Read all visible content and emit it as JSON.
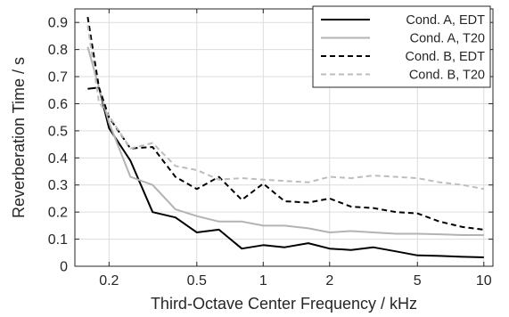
{
  "chart_data": {
    "type": "line",
    "xscale": "log",
    "xlabel": "Third-Octave Center Frequency / kHz",
    "ylabel": "Reverberation Time / s",
    "xlim": [
      0.14,
      11.0
    ],
    "ylim": [
      0,
      0.95
    ],
    "grid": true,
    "legend_position": "top-right",
    "xticks": [
      0.2,
      0.5,
      1,
      2,
      5,
      10
    ],
    "xtick_labels": [
      "0.2",
      "0.5",
      "1",
      "2",
      "5",
      "10"
    ],
    "yticks": [
      0,
      0.1,
      0.2,
      0.3,
      0.4,
      0.5,
      0.6,
      0.7,
      0.8,
      0.9
    ],
    "ytick_labels": [
      "0",
      "0.1",
      "0.2",
      "0.3",
      "0.4",
      "0.5",
      "0.6",
      "0.7",
      "0.8",
      "0.9"
    ],
    "series": [
      {
        "name": "Cond. A, EDT",
        "color": "#000000",
        "dash": "solid",
        "x": [
          0.16,
          0.18,
          0.2,
          0.25,
          0.315,
          0.4,
          0.5,
          0.63,
          0.8,
          1.0,
          1.25,
          1.6,
          2.0,
          2.5,
          3.15,
          4.0,
          5.0,
          6.3,
          8.0,
          10.0
        ],
        "y": [
          0.655,
          0.66,
          0.51,
          0.39,
          0.2,
          0.18,
          0.125,
          0.135,
          0.065,
          0.078,
          0.07,
          0.085,
          0.065,
          0.06,
          0.07,
          0.055,
          0.04,
          0.038,
          0.035,
          0.033
        ]
      },
      {
        "name": "Cond. A, T20",
        "color": "#b3b3b3",
        "dash": "solid",
        "x": [
          0.16,
          0.18,
          0.2,
          0.25,
          0.315,
          0.4,
          0.5,
          0.63,
          0.8,
          1.0,
          1.25,
          1.6,
          2.0,
          2.5,
          3.15,
          4.0,
          5.0,
          6.3,
          8.0,
          10.0
        ],
        "y": [
          0.81,
          0.66,
          0.53,
          0.33,
          0.3,
          0.21,
          0.185,
          0.165,
          0.165,
          0.15,
          0.15,
          0.14,
          0.125,
          0.13,
          0.125,
          0.12,
          0.12,
          0.118,
          0.115,
          0.115
        ]
      },
      {
        "name": "Cond. B, EDT",
        "color": "#000000",
        "dash": "dashed",
        "x": [
          0.16,
          0.18,
          0.2,
          0.25,
          0.315,
          0.4,
          0.5,
          0.63,
          0.8,
          1.0,
          1.25,
          1.6,
          2.0,
          2.5,
          3.15,
          4.0,
          5.0,
          6.3,
          8.0,
          10.0
        ],
        "y": [
          0.92,
          0.66,
          0.55,
          0.435,
          0.44,
          0.33,
          0.285,
          0.33,
          0.245,
          0.305,
          0.24,
          0.235,
          0.25,
          0.22,
          0.215,
          0.2,
          0.195,
          0.165,
          0.145,
          0.135
        ]
      },
      {
        "name": "Cond. B, T20",
        "color": "#bdbdbd",
        "dash": "dashed",
        "x": [
          0.16,
          0.18,
          0.2,
          0.25,
          0.315,
          0.4,
          0.5,
          0.63,
          0.8,
          1.0,
          1.25,
          1.6,
          2.0,
          2.5,
          3.15,
          4.0,
          5.0,
          6.3,
          8.0,
          10.0
        ],
        "y": [
          0.89,
          0.605,
          0.555,
          0.435,
          0.455,
          0.37,
          0.355,
          0.32,
          0.325,
          0.32,
          0.315,
          0.31,
          0.33,
          0.325,
          0.335,
          0.33,
          0.325,
          0.31,
          0.3,
          0.285
        ]
      }
    ]
  }
}
